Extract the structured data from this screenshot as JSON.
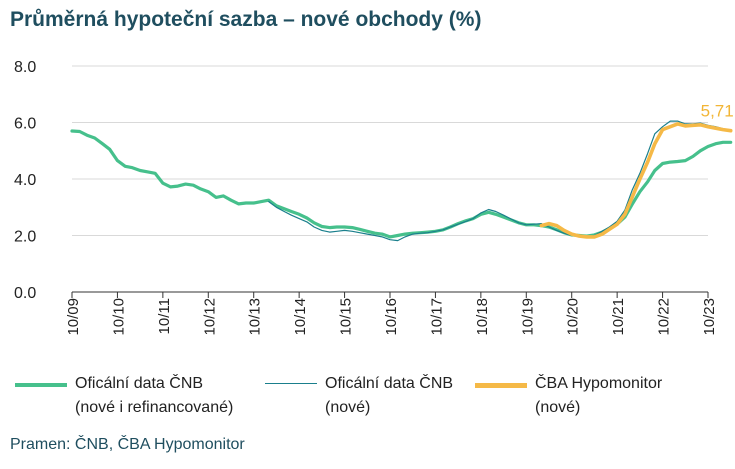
{
  "title": "Průměrná hypoteční sazba – nové obchody (%)",
  "source": "Pramen: ČNB, ČBA Hypomonitor",
  "legend": [
    {
      "line1": "Oficální data ČNB",
      "line2": "(nové i refinancované)"
    },
    {
      "line1": "Oficální data ČNB",
      "line2": "(nové)"
    },
    {
      "line1": "ČBA Hypomonitor",
      "line2": "(nové)"
    }
  ],
  "chart_data": {
    "type": "line",
    "title": "Průměrná hypoteční sazba – nové obchody (%)",
    "ylim": [
      0,
      8
    ],
    "yticks": [
      "0.0",
      "2.0",
      "4.0",
      "6.0",
      "8.0"
    ],
    "xticks": [
      "10/09",
      "10/10",
      "10/11",
      "10/12",
      "10/13",
      "10/14",
      "10/15",
      "10/16",
      "10/17",
      "10/18",
      "10/19",
      "10/20",
      "10/21",
      "10/22",
      "10/23"
    ],
    "x_unit": "years since 10/09",
    "grid": "horizontal",
    "end_label": "5,71",
    "colors": {
      "series1": "#46c08c",
      "series2": "#1a7f8c",
      "series3": "#f5b947"
    },
    "series": [
      {
        "name": "Oficální data ČNB (nové i refinancované)",
        "points": [
          [
            0,
            5.7
          ],
          [
            0.17,
            5.68
          ],
          [
            0.33,
            5.55
          ],
          [
            0.5,
            5.45
          ],
          [
            0.67,
            5.25
          ],
          [
            0.83,
            5.05
          ],
          [
            1.0,
            4.65
          ],
          [
            1.17,
            4.45
          ],
          [
            1.33,
            4.4
          ],
          [
            1.5,
            4.3
          ],
          [
            1.67,
            4.25
          ],
          [
            1.83,
            4.2
          ],
          [
            2.0,
            3.85
          ],
          [
            2.17,
            3.72
          ],
          [
            2.33,
            3.75
          ],
          [
            2.5,
            3.82
          ],
          [
            2.67,
            3.78
          ],
          [
            2.83,
            3.65
          ],
          [
            3.0,
            3.55
          ],
          [
            3.17,
            3.35
          ],
          [
            3.33,
            3.4
          ],
          [
            3.5,
            3.25
          ],
          [
            3.67,
            3.12
          ],
          [
            3.83,
            3.15
          ],
          [
            4.0,
            3.15
          ],
          [
            4.17,
            3.2
          ],
          [
            4.33,
            3.25
          ],
          [
            4.5,
            3.05
          ],
          [
            4.67,
            2.95
          ],
          [
            4.83,
            2.85
          ],
          [
            5.0,
            2.75
          ],
          [
            5.17,
            2.62
          ],
          [
            5.33,
            2.45
          ],
          [
            5.5,
            2.32
          ],
          [
            5.67,
            2.28
          ],
          [
            5.83,
            2.3
          ],
          [
            6.0,
            2.3
          ],
          [
            6.17,
            2.28
          ],
          [
            6.33,
            2.22
          ],
          [
            6.5,
            2.15
          ],
          [
            6.67,
            2.08
          ],
          [
            6.83,
            2.05
          ],
          [
            7.0,
            1.95
          ],
          [
            7.17,
            2.0
          ],
          [
            7.33,
            2.05
          ],
          [
            7.5,
            2.08
          ],
          [
            7.67,
            2.1
          ],
          [
            7.83,
            2.12
          ],
          [
            8.0,
            2.15
          ],
          [
            8.17,
            2.2
          ],
          [
            8.33,
            2.3
          ],
          [
            8.5,
            2.42
          ],
          [
            8.67,
            2.52
          ],
          [
            8.83,
            2.6
          ],
          [
            9.0,
            2.75
          ],
          [
            9.17,
            2.82
          ],
          [
            9.33,
            2.75
          ],
          [
            9.5,
            2.65
          ],
          [
            9.67,
            2.55
          ],
          [
            9.83,
            2.45
          ],
          [
            10.0,
            2.38
          ],
          [
            10.17,
            2.38
          ],
          [
            10.33,
            2.35
          ],
          [
            10.5,
            2.3
          ],
          [
            10.67,
            2.2
          ],
          [
            10.83,
            2.1
          ],
          [
            11.0,
            2.02
          ],
          [
            11.17,
            2.0
          ],
          [
            11.33,
            1.98
          ],
          [
            11.5,
            2.02
          ],
          [
            11.67,
            2.12
          ],
          [
            11.83,
            2.25
          ],
          [
            12.0,
            2.4
          ],
          [
            12.17,
            2.65
          ],
          [
            12.33,
            3.1
          ],
          [
            12.5,
            3.55
          ],
          [
            12.67,
            3.9
          ],
          [
            12.83,
            4.3
          ],
          [
            13.0,
            4.55
          ],
          [
            13.17,
            4.6
          ],
          [
            13.33,
            4.62
          ],
          [
            13.5,
            4.65
          ],
          [
            13.67,
            4.8
          ],
          [
            13.83,
            5.0
          ],
          [
            14.0,
            5.15
          ],
          [
            14.17,
            5.25
          ],
          [
            14.33,
            5.3
          ],
          [
            14.5,
            5.3
          ]
        ]
      },
      {
        "name": "Oficální data ČNB (nové)",
        "points": [
          [
            4.33,
            3.2
          ],
          [
            4.5,
            3.0
          ],
          [
            4.67,
            2.85
          ],
          [
            4.83,
            2.72
          ],
          [
            5.0,
            2.6
          ],
          [
            5.17,
            2.48
          ],
          [
            5.33,
            2.3
          ],
          [
            5.5,
            2.18
          ],
          [
            5.67,
            2.12
          ],
          [
            5.83,
            2.15
          ],
          [
            6.0,
            2.18
          ],
          [
            6.17,
            2.15
          ],
          [
            6.33,
            2.1
          ],
          [
            6.5,
            2.05
          ],
          [
            6.67,
            2.0
          ],
          [
            6.83,
            1.95
          ],
          [
            7.0,
            1.85
          ],
          [
            7.17,
            1.82
          ],
          [
            7.33,
            1.95
          ],
          [
            7.5,
            2.05
          ],
          [
            7.67,
            2.08
          ],
          [
            7.83,
            2.1
          ],
          [
            8.0,
            2.15
          ],
          [
            8.17,
            2.2
          ],
          [
            8.33,
            2.3
          ],
          [
            8.5,
            2.4
          ],
          [
            8.67,
            2.5
          ],
          [
            8.83,
            2.6
          ],
          [
            9.0,
            2.8
          ],
          [
            9.17,
            2.92
          ],
          [
            9.33,
            2.85
          ],
          [
            9.5,
            2.72
          ],
          [
            9.67,
            2.58
          ],
          [
            9.83,
            2.45
          ],
          [
            10.0,
            2.38
          ],
          [
            10.17,
            2.4
          ],
          [
            10.33,
            2.42
          ],
          [
            10.5,
            2.3
          ],
          [
            10.67,
            2.18
          ],
          [
            10.83,
            2.08
          ],
          [
            11.0,
            2.0
          ],
          [
            11.17,
            1.97
          ],
          [
            11.33,
            1.95
          ],
          [
            11.5,
            2.0
          ],
          [
            11.67,
            2.15
          ],
          [
            11.83,
            2.3
          ],
          [
            12.0,
            2.5
          ],
          [
            12.17,
            2.9
          ],
          [
            12.33,
            3.6
          ],
          [
            12.5,
            4.2
          ],
          [
            12.67,
            4.9
          ],
          [
            12.83,
            5.6
          ],
          [
            13.0,
            5.85
          ],
          [
            13.17,
            6.05
          ],
          [
            13.33,
            6.05
          ],
          [
            13.5,
            5.95
          ],
          [
            13.67,
            5.95
          ],
          [
            13.83,
            5.98
          ],
          [
            14.0,
            5.9
          ],
          [
            14.17,
            5.85
          ],
          [
            14.33,
            5.78
          ]
        ]
      },
      {
        "name": "ČBA Hypomonitor (nové)",
        "points": [
          [
            10.33,
            2.35
          ],
          [
            10.5,
            2.42
          ],
          [
            10.67,
            2.35
          ],
          [
            10.83,
            2.18
          ],
          [
            11.0,
            2.05
          ],
          [
            11.17,
            1.98
          ],
          [
            11.33,
            1.95
          ],
          [
            11.5,
            1.95
          ],
          [
            11.67,
            2.05
          ],
          [
            11.83,
            2.22
          ],
          [
            12.0,
            2.4
          ],
          [
            12.17,
            2.75
          ],
          [
            12.33,
            3.35
          ],
          [
            12.5,
            4.0
          ],
          [
            12.67,
            4.6
          ],
          [
            12.83,
            5.25
          ],
          [
            13.0,
            5.75
          ],
          [
            13.17,
            5.85
          ],
          [
            13.33,
            5.95
          ],
          [
            13.5,
            5.88
          ],
          [
            13.67,
            5.9
          ],
          [
            13.83,
            5.92
          ],
          [
            14.0,
            5.85
          ],
          [
            14.17,
            5.8
          ],
          [
            14.33,
            5.75
          ],
          [
            14.5,
            5.71
          ]
        ]
      }
    ]
  }
}
